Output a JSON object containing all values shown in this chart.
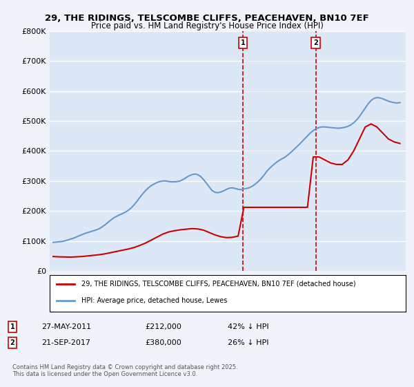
{
  "title": "29, THE RIDINGS, TELSCOMBE CLIFFS, PEACEHAVEN, BN10 7EF",
  "subtitle": "Price paid vs. HM Land Registry's House Price Index (HPI)",
  "ylabel": "",
  "xlabel": "",
  "ylim": [
    0,
    800000
  ],
  "yticks": [
    0,
    100000,
    200000,
    300000,
    400000,
    500000,
    600000,
    700000,
    800000
  ],
  "ytick_labels": [
    "£0",
    "£100K",
    "£200K",
    "£300K",
    "£400K",
    "£500K",
    "£600K",
    "£700K",
    "£800K"
  ],
  "xlim_start": 1995,
  "xlim_end": 2025.5,
  "background_color": "#f0f4fa",
  "plot_bg_color": "#dce8f5",
  "grid_color": "#ffffff",
  "line1_color": "#cc0000",
  "line2_color": "#6699cc",
  "vline_color": "#cc0000",
  "purchase1_year": 2011.41,
  "purchase1_price": 212000,
  "purchase1_label": "1",
  "purchase1_date": "27-MAY-2011",
  "purchase1_hpi_pct": "42% ↓ HPI",
  "purchase2_year": 2017.72,
  "purchase2_price": 380000,
  "purchase2_label": "2",
  "purchase2_date": "21-SEP-2017",
  "purchase2_hpi_pct": "26% ↓ HPI",
  "legend_line1": "29, THE RIDINGS, TELSCOMBE CLIFFS, PEACEHAVEN, BN10 7EF (detached house)",
  "legend_line2": "HPI: Average price, detached house, Lewes",
  "footer": "Contains HM Land Registry data © Crown copyright and database right 2025.\nThis data is licensed under the Open Government Licence v3.0.",
  "hpi_x": [
    1995,
    1995.25,
    1995.5,
    1995.75,
    1996,
    1996.25,
    1996.5,
    1996.75,
    1997,
    1997.25,
    1997.5,
    1997.75,
    1998,
    1998.25,
    1998.5,
    1998.75,
    1999,
    1999.25,
    1999.5,
    1999.75,
    2000,
    2000.25,
    2000.5,
    2000.75,
    2001,
    2001.25,
    2001.5,
    2001.75,
    2002,
    2002.25,
    2002.5,
    2002.75,
    2003,
    2003.25,
    2003.5,
    2003.75,
    2004,
    2004.25,
    2004.5,
    2004.75,
    2005,
    2005.25,
    2005.5,
    2005.75,
    2006,
    2006.25,
    2006.5,
    2006.75,
    2007,
    2007.25,
    2007.5,
    2007.75,
    2008,
    2008.25,
    2008.5,
    2008.75,
    2009,
    2009.25,
    2009.5,
    2009.75,
    2010,
    2010.25,
    2010.5,
    2010.75,
    2011,
    2011.25,
    2011.5,
    2011.75,
    2012,
    2012.25,
    2012.5,
    2012.75,
    2013,
    2013.25,
    2013.5,
    2013.75,
    2014,
    2014.25,
    2014.5,
    2014.75,
    2015,
    2015.25,
    2015.5,
    2015.75,
    2016,
    2016.25,
    2016.5,
    2016.75,
    2017,
    2017.25,
    2017.5,
    2017.75,
    2018,
    2018.25,
    2018.5,
    2018.75,
    2019,
    2019.25,
    2019.5,
    2019.75,
    2020,
    2020.25,
    2020.5,
    2020.75,
    2021,
    2021.25,
    2021.5,
    2021.75,
    2022,
    2022.25,
    2022.5,
    2022.75,
    2023,
    2023.25,
    2023.5,
    2023.75,
    2024,
    2024.25,
    2024.5,
    2024.75,
    2025
  ],
  "hpi_y": [
    95000,
    96000,
    97000,
    98000,
    100000,
    103000,
    106000,
    109000,
    113000,
    117000,
    121000,
    125000,
    128000,
    131000,
    134000,
    137000,
    141000,
    147000,
    154000,
    162000,
    170000,
    177000,
    182000,
    187000,
    191000,
    196000,
    202000,
    210000,
    220000,
    232000,
    245000,
    257000,
    268000,
    277000,
    285000,
    290000,
    295000,
    298000,
    300000,
    300000,
    298000,
    297000,
    297000,
    298000,
    300000,
    305000,
    311000,
    317000,
    321000,
    323000,
    321000,
    315000,
    305000,
    293000,
    280000,
    268000,
    262000,
    261000,
    263000,
    267000,
    272000,
    276000,
    277000,
    275000,
    272000,
    271000,
    273000,
    275000,
    278000,
    283000,
    290000,
    298000,
    308000,
    320000,
    333000,
    343000,
    352000,
    360000,
    367000,
    373000,
    378000,
    385000,
    393000,
    402000,
    411000,
    420000,
    430000,
    440000,
    450000,
    460000,
    468000,
    474000,
    478000,
    480000,
    480000,
    479000,
    478000,
    477000,
    476000,
    476000,
    477000,
    479000,
    482000,
    487000,
    494000,
    503000,
    515000,
    529000,
    543000,
    557000,
    568000,
    575000,
    578000,
    577000,
    574000,
    570000,
    566000,
    563000,
    561000,
    560000,
    561000
  ],
  "prop_x": [
    1995,
    1995.5,
    1996,
    1996.5,
    1997,
    1997.5,
    1998,
    1998.5,
    1999,
    1999.5,
    2000,
    2000.5,
    2001,
    2001.5,
    2002,
    2002.5,
    2003,
    2003.5,
    2004,
    2004.5,
    2005,
    2005.5,
    2006,
    2006.5,
    2007,
    2007.5,
    2008,
    2008.5,
    2009,
    2009.5,
    2010,
    2010.5,
    2011,
    2011.5,
    2012,
    2012.5,
    2013,
    2013.5,
    2014,
    2014.5,
    2015,
    2015.5,
    2016,
    2016.5,
    2017,
    2017.5,
    2018,
    2018.5,
    2019,
    2019.5,
    2020,
    2020.5,
    2021,
    2021.5,
    2022,
    2022.5,
    2023,
    2023.5,
    2024,
    2024.5,
    2025
  ],
  "prop_y": [
    48000,
    47000,
    46500,
    46000,
    47000,
    48000,
    50000,
    52000,
    54000,
    57000,
    61000,
    65000,
    69000,
    73000,
    78000,
    85000,
    93000,
    103000,
    113000,
    123000,
    130000,
    134000,
    137000,
    139000,
    141000,
    140000,
    136000,
    128000,
    120000,
    114000,
    111000,
    112000,
    116000,
    212000,
    212000,
    212000,
    212000,
    212000,
    212000,
    212000,
    212000,
    212000,
    212000,
    212000,
    212000,
    380000,
    380000,
    370000,
    360000,
    355000,
    355000,
    370000,
    400000,
    440000,
    480000,
    490000,
    480000,
    460000,
    440000,
    430000,
    425000
  ]
}
